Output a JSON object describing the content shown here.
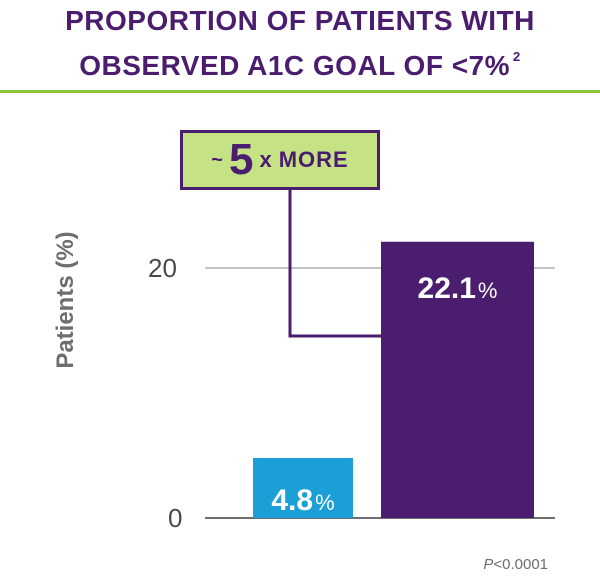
{
  "header": {
    "title_line1": "PROPORTION OF PATIENTS WITH",
    "title_line2": "OBSERVED A1C GOAL OF <7%",
    "title_ref": "2"
  },
  "callout": {
    "tilde": "~",
    "number": "5",
    "times": "x",
    "word": "MORE"
  },
  "footnote": {
    "p_symbol": "P",
    "p_value": "<0.0001"
  },
  "colors": {
    "title": "#4b1d6e",
    "divider": "#8dc63f",
    "bar_low": "#1a9fd6",
    "bar_high": "#4b1d6e",
    "callout_bg": "#c5e384"
  },
  "chart_data": {
    "type": "bar",
    "title": "PROPORTION OF PATIENTS WITH OBSERVED A1C GOAL OF <7%",
    "xlabel": "",
    "ylabel": "Patients (%)",
    "ylim": [
      0,
      26
    ],
    "yticks": [
      0,
      20
    ],
    "grid": true,
    "categories": [
      "",
      ""
    ],
    "values": [
      4.8,
      22.1
    ],
    "data_labels": [
      "4.8",
      "22.1"
    ],
    "label_unit": "%",
    "bar_colors": [
      "#1a9fd6",
      "#4b1d6e"
    ]
  }
}
